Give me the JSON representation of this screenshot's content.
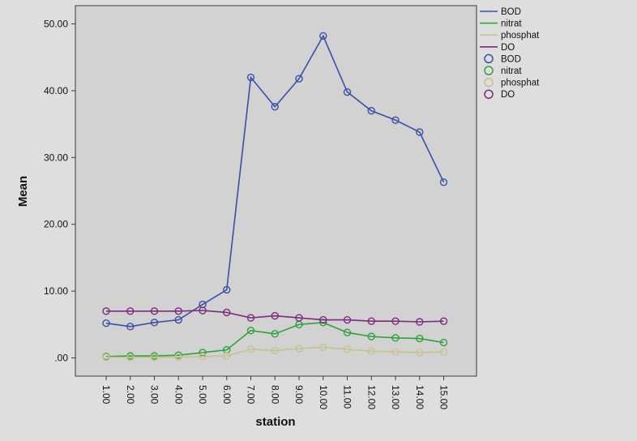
{
  "chart_data": {
    "type": "line",
    "xlabel": "station",
    "ylabel": "Mean",
    "x": [
      "1.00",
      "2.00",
      "3.00",
      "4.00",
      "5.00",
      "6.00",
      "7.00",
      "8.00",
      "9.00",
      "10.00",
      "11.00",
      "12.00",
      "13.00",
      "14.00",
      "15.00"
    ],
    "ylim": [
      0,
      50
    ],
    "yticks": [
      ".00",
      "10.00",
      "20.00",
      "30.00",
      "40.00",
      "50.00"
    ],
    "ytick_values": [
      0,
      10,
      20,
      30,
      40,
      50
    ],
    "grid": false,
    "legend_position": "right",
    "series": [
      {
        "name": "BOD",
        "color": "#3b4fa8",
        "values": [
          5.2,
          4.7,
          5.3,
          5.7,
          8.0,
          10.2,
          42.0,
          37.6,
          41.8,
          48.2,
          39.8,
          37.0,
          35.6,
          33.8,
          26.3
        ]
      },
      {
        "name": "nitrat",
        "color": "#2ea33a",
        "values": [
          0.2,
          0.3,
          0.3,
          0.4,
          0.8,
          1.2,
          4.1,
          3.6,
          5.0,
          5.3,
          3.8,
          3.2,
          3.0,
          2.9,
          2.3
        ]
      },
      {
        "name": "phosphat",
        "color": "#c6c28f",
        "values": [
          0.1,
          0.1,
          0.1,
          0.1,
          0.2,
          0.3,
          1.3,
          1.1,
          1.4,
          1.6,
          1.3,
          1.0,
          0.9,
          0.8,
          0.9
        ]
      },
      {
        "name": "DO",
        "color": "#7e2a7e",
        "values": [
          7.0,
          7.0,
          7.0,
          7.0,
          7.1,
          6.8,
          6.0,
          6.3,
          6.0,
          5.7,
          5.7,
          5.5,
          5.5,
          5.4,
          5.5
        ]
      }
    ],
    "legend_line_labels": [
      "BOD",
      "nitrat",
      "phosphat",
      "DO"
    ],
    "legend_marker_labels": [
      "BOD",
      "nitrat",
      "phosphat",
      "DO"
    ]
  }
}
